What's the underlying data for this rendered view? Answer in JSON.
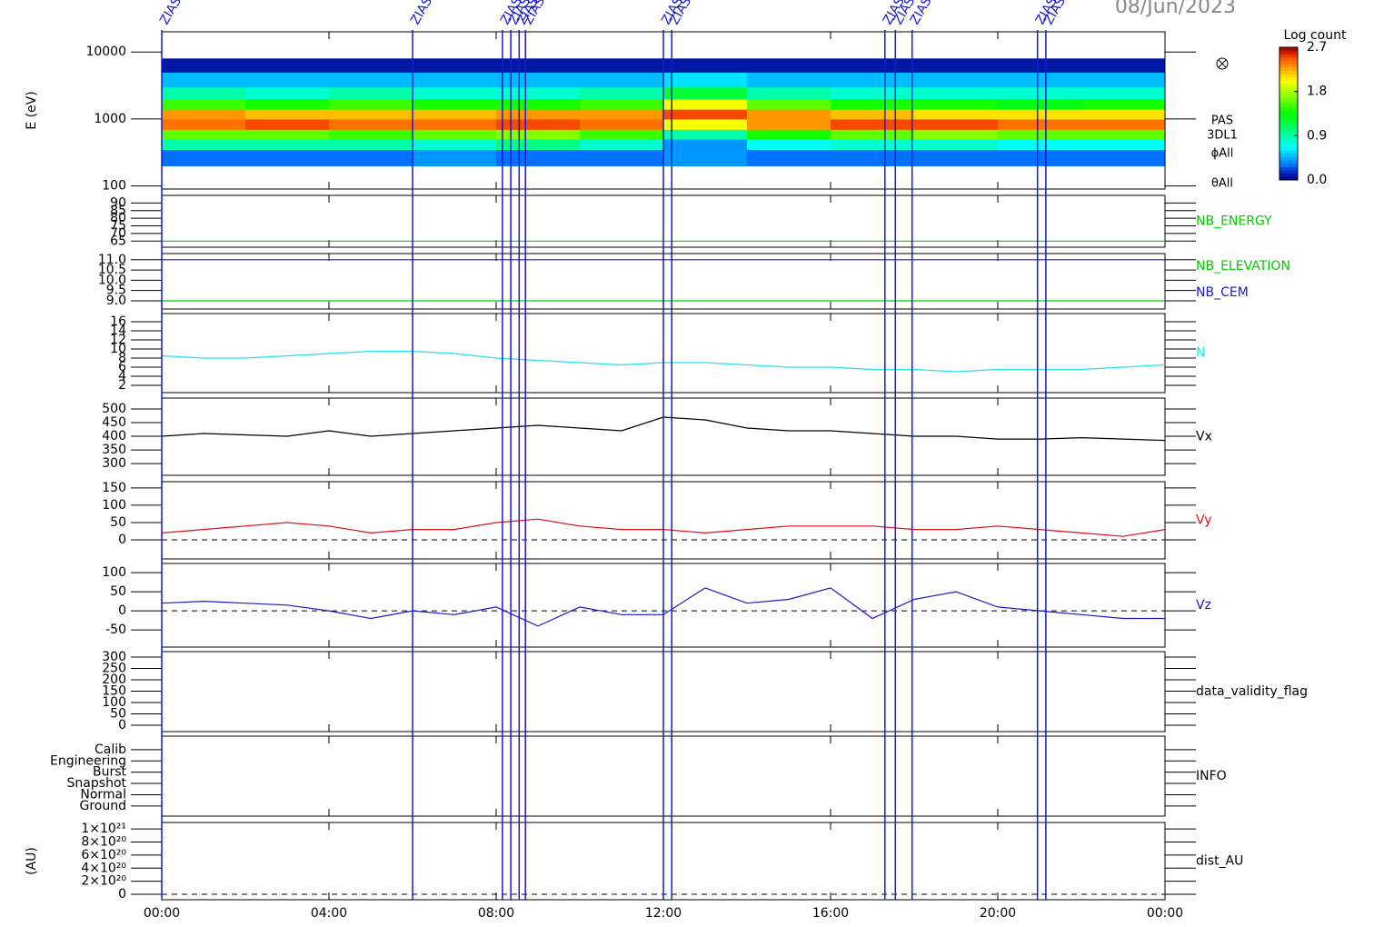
{
  "header": {
    "title": "08/Jun/2023"
  },
  "events": [
    {
      "x": 0.0,
      "label": "ZIAS"
    },
    {
      "x": 6.0,
      "label": "ZIAS"
    },
    {
      "x": 8.15,
      "label": "ZIAS"
    },
    {
      "x": 8.35,
      "label": "ZIAS"
    },
    {
      "x": 8.55,
      "label": "ZIAS"
    },
    {
      "x": 8.7,
      "label": "ZIAS"
    },
    {
      "x": 12.0,
      "label": "ZIAS"
    },
    {
      "x": 12.2,
      "label": "ZIAS"
    },
    {
      "x": 17.3,
      "label": "ZIAS"
    },
    {
      "x": 17.55,
      "label": "ZIAS"
    },
    {
      "x": 17.95,
      "label": "ZIAS"
    },
    {
      "x": 20.95,
      "label": "ZIAS"
    },
    {
      "x": 21.15,
      "label": "ZIAS"
    }
  ],
  "chart_data": [
    {
      "type": "heatmap",
      "ylabel": "E (eV)",
      "log": true,
      "ylim": [
        90,
        20000
      ],
      "yticks": [
        100,
        1000,
        10000
      ],
      "side_labels": [
        "PAS",
        "3DL1",
        "ϕAll",
        "θAll"
      ],
      "x_bins": [
        0,
        2,
        4,
        6,
        8,
        10,
        12,
        14,
        16,
        18,
        20,
        22,
        24
      ],
      "y_bins": [
        200,
        350,
        500,
        700,
        1000,
        1400,
        2000,
        3000,
        5000,
        8000
      ],
      "z": [
        [
          0.3,
          0.3,
          0.3,
          0.4,
          0.3,
          0.3,
          0.4,
          0.3,
          0.3,
          0.3,
          0.3,
          0.3
        ],
        [
          0.9,
          0.9,
          0.9,
          0.8,
          1.0,
          0.8,
          0.4,
          0.7,
          0.8,
          0.8,
          0.7,
          0.7
        ],
        [
          1.6,
          1.6,
          1.5,
          1.6,
          1.7,
          1.5,
          0.9,
          1.4,
          1.6,
          1.7,
          1.6,
          1.6
        ],
        [
          2.4,
          2.5,
          2.4,
          2.4,
          2.5,
          2.4,
          2.0,
          2.3,
          2.5,
          2.5,
          2.4,
          2.4
        ],
        [
          2.3,
          2.2,
          2.2,
          2.2,
          2.3,
          2.3,
          2.5,
          2.3,
          2.2,
          2.1,
          2.1,
          2.1
        ],
        [
          1.5,
          1.4,
          1.5,
          1.4,
          1.4,
          1.5,
          2.0,
          1.6,
          1.4,
          1.4,
          1.3,
          1.4
        ],
        [
          0.9,
          0.8,
          0.9,
          0.8,
          0.8,
          0.9,
          1.2,
          0.9,
          0.8,
          0.8,
          0.8,
          0.8
        ],
        [
          0.5,
          0.5,
          0.5,
          0.5,
          0.5,
          0.5,
          0.6,
          0.5,
          0.5,
          0.5,
          0.5,
          0.5
        ],
        [
          0.1,
          0.1,
          0.1,
          0.1,
          0.1,
          0.1,
          0.1,
          0.1,
          0.1,
          0.1,
          0.1,
          0.1
        ]
      ],
      "colorbar": {
        "label": "Log count",
        "lim": [
          0,
          2.7
        ],
        "ticks": [
          {
            "value": 0,
            "label": "0.0"
          },
          {
            "value": 0.9,
            "label": "0.9"
          },
          {
            "value": 1.8,
            "label": "1.8"
          },
          {
            "value": 2.7,
            "label": "2.7"
          }
        ]
      }
    },
    {
      "type": "line",
      "ylim": [
        61,
        95
      ],
      "yticks": [
        65,
        70,
        75,
        80,
        85,
        90
      ],
      "x": [
        0,
        24
      ],
      "series": [
        {
          "name": "NB_ENERGY",
          "color": "#00cc00",
          "values": [
            65,
            65
          ]
        }
      ]
    },
    {
      "type": "line",
      "ylim": [
        8.6,
        11.3
      ],
      "yticks": [
        {
          "value": 9,
          "label": "9.0"
        },
        {
          "value": 9.5,
          "label": "9.5"
        },
        {
          "value": 10,
          "label": "10.0"
        },
        {
          "value": 10.5,
          "label": "10.5"
        },
        {
          "value": 11,
          "label": "11.0"
        }
      ],
      "x": [
        0,
        24
      ],
      "series": [
        {
          "name": "NB_ELEVATION",
          "color": "#00cc00",
          "values": [
            9,
            9
          ]
        },
        {
          "name": "NB_CEM",
          "color": "#1a1acc",
          "values": [
            11,
            11
          ]
        }
      ]
    },
    {
      "type": "line",
      "ylim": [
        0.4,
        17.8
      ],
      "yticks": [
        2,
        4,
        6,
        8,
        10,
        12,
        14,
        16
      ],
      "x": [
        0,
        1,
        2,
        3,
        4,
        5,
        6,
        7,
        8,
        9,
        10,
        11,
        12,
        13,
        14,
        15,
        16,
        17,
        18,
        19,
        20,
        21,
        22,
        23,
        24
      ],
      "series": [
        {
          "name": "N",
          "color": "#22e0ee",
          "values": [
            8.5,
            8,
            8,
            8.5,
            9,
            9.5,
            9.5,
            9,
            8,
            7.5,
            7,
            6.5,
            7,
            7,
            6.5,
            6,
            6,
            5.5,
            5.5,
            5,
            5.5,
            5.5,
            5.5,
            6,
            6.5
          ]
        }
      ]
    },
    {
      "type": "line",
      "ylim": [
        257,
        540
      ],
      "yticks": [
        300,
        350,
        400,
        450,
        500
      ],
      "x": [
        0,
        1,
        2,
        3,
        4,
        5,
        6,
        7,
        8,
        9,
        10,
        11,
        12,
        13,
        14,
        15,
        16,
        17,
        18,
        19,
        20,
        21,
        22,
        23,
        24
      ],
      "series": [
        {
          "name": "Vx",
          "color": "#000000",
          "values": [
            400,
            410,
            405,
            400,
            420,
            400,
            410,
            420,
            430,
            440,
            430,
            420,
            470,
            460,
            430,
            420,
            420,
            410,
            400,
            400,
            390,
            390,
            395,
            390,
            385
          ]
        }
      ]
    },
    {
      "type": "line",
      "ylim": [
        -55,
        168
      ],
      "yticks": [
        0,
        50,
        100,
        150
      ],
      "zero_line": true,
      "x": [
        0,
        1,
        2,
        3,
        4,
        5,
        6,
        7,
        8,
        9,
        10,
        11,
        12,
        13,
        14,
        15,
        16,
        17,
        18,
        19,
        20,
        21,
        22,
        23,
        24
      ],
      "series": [
        {
          "name": "Vy",
          "color": "#dd1111",
          "values": [
            20,
            30,
            40,
            50,
            40,
            20,
            30,
            30,
            50,
            60,
            40,
            30,
            30,
            20,
            30,
            40,
            40,
            40,
            30,
            30,
            40,
            30,
            20,
            10,
            30
          ]
        }
      ]
    },
    {
      "type": "line",
      "ylim": [
        -95,
        124
      ],
      "yticks": [
        -50,
        0,
        50,
        100
      ],
      "zero_line": true,
      "x": [
        0,
        1,
        2,
        3,
        4,
        5,
        6,
        7,
        8,
        9,
        10,
        11,
        12,
        13,
        14,
        15,
        16,
        17,
        18,
        19,
        20,
        21,
        22,
        23,
        24
      ],
      "series": [
        {
          "name": "Vz",
          "color": "#1a1acc",
          "values": [
            20,
            25,
            20,
            15,
            0,
            -20,
            0,
            -10,
            10,
            -40,
            10,
            -10,
            -10,
            60,
            20,
            30,
            60,
            -20,
            30,
            50,
            10,
            0,
            -10,
            -20,
            -20
          ]
        }
      ]
    },
    {
      "type": "line",
      "ylim": [
        -28,
        324
      ],
      "yticks": [
        0,
        50,
        100,
        150,
        200,
        250,
        300
      ],
      "label": "data_validity_flag",
      "series": []
    },
    {
      "type": "line",
      "ylim": [
        -0.9,
        6.2
      ],
      "label": "INFO",
      "series": [],
      "yticks": [
        {
          "value": 0,
          "label": "Ground"
        },
        {
          "value": 1,
          "label": "Normal"
        },
        {
          "value": 2,
          "label": "Snapshot"
        },
        {
          "value": 3,
          "label": "Burst"
        },
        {
          "value": 4,
          "label": "Engineering"
        },
        {
          "value": 5,
          "label": "Calib"
        }
      ]
    },
    {
      "type": "line",
      "ylabel": "(AU)",
      "label": "dist_AU",
      "zero_line": true,
      "series": [],
      "ylim": [
        -8.3e+19,
        1.1e+21
      ],
      "yticks": [
        0,
        {
          "value": 2e+20,
          "label": "2×10²⁰"
        },
        {
          "value": 4e+20,
          "label": "4×10²⁰"
        },
        {
          "value": 6e+20,
          "label": "6×10²⁰"
        },
        {
          "value": 8e+20,
          "label": "8×10²⁰"
        },
        {
          "value": 1e+21,
          "label": "1×10²¹"
        }
      ],
      "xlim": [
        0,
        24
      ],
      "xticks": [
        {
          "value": 0,
          "label": "00:00"
        },
        {
          "value": 4,
          "label": "04:00"
        },
        {
          "value": 8,
          "label": "08:00"
        },
        {
          "value": 12,
          "label": "12:00"
        },
        {
          "value": 16,
          "label": "16:00"
        },
        {
          "value": 20,
          "label": "20:00"
        },
        {
          "value": 24,
          "label": "00:00"
        }
      ]
    }
  ]
}
